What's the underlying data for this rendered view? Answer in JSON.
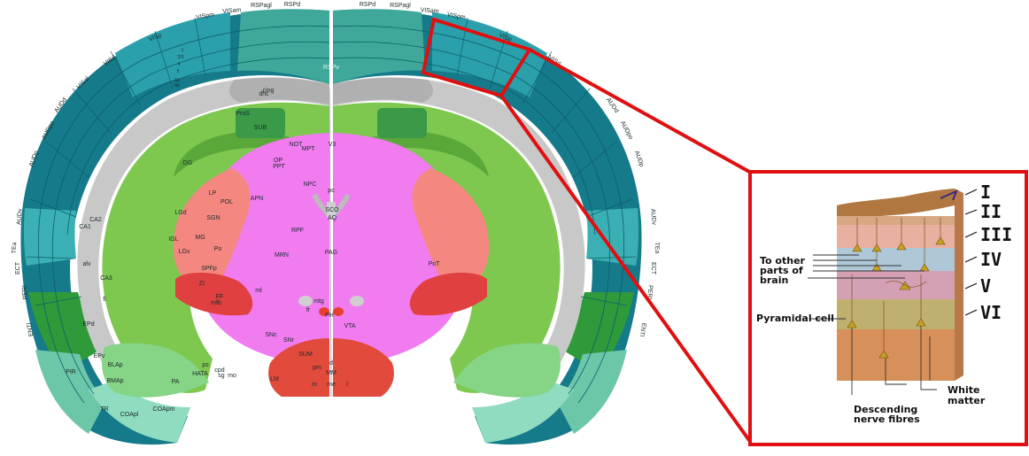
{
  "atlas": {
    "cortex_left": [
      "VISp",
      "VISpm",
      "VISam",
      "RSPagl",
      "RSPd",
      "VISrl",
      "VISal",
      "AUDd",
      "AUDpo",
      "AUDp",
      "AUDv",
      "TEa",
      "ECT",
      "PERI",
      "ENTl"
    ],
    "cortex_right": [
      "RSPd",
      "RSPagl",
      "VISam",
      "VISpm",
      "VISp",
      "VISrl",
      "AUDd",
      "AUDpo",
      "AUDp",
      "AUDv",
      "TEa",
      "ECT",
      "PERI",
      "ENTl"
    ],
    "rsp_center": "RSPv",
    "hippocampal": [
      "cing",
      "dhc",
      "SUB",
      "ProS",
      "DG",
      "CA1",
      "CA3",
      "CA2",
      "alv",
      "fi"
    ],
    "thalamic": [
      "LP",
      "LGd",
      "SGN",
      "POL",
      "MG",
      "Po",
      "LGv",
      "SPFp",
      "PoT",
      "IGL",
      "ZI",
      "FF"
    ],
    "midbrain": [
      "NOT",
      "OP",
      "MPT",
      "PPT",
      "NPC",
      "APN",
      "RPF",
      "MRN",
      "PAG",
      "SCO",
      "AQ",
      "V3",
      "pc",
      "mtg",
      "fr",
      "PH",
      "VTA",
      "SNc",
      "SNr",
      "mfb",
      "cpd",
      "ml"
    ],
    "hypothalamic": [
      "SUM",
      "MM",
      "LM",
      "d",
      "pm",
      "me",
      "m",
      "l"
    ],
    "amygdalar": [
      "BLAp",
      "BMAp",
      "EPv",
      "EPd",
      "PA",
      "PIR",
      "TR",
      "COApl",
      "COApm",
      "HATA",
      "ps",
      "sg",
      "mo"
    ],
    "cortical_layers": [
      "1",
      "2/3",
      "4",
      "5",
      "6a",
      "6b"
    ]
  },
  "inset": {
    "roman_layers": [
      "I",
      "II",
      "III",
      "IV",
      "V",
      "VI"
    ],
    "annotation_other_parts": [
      "To other",
      "parts of",
      "brain"
    ],
    "annotation_pyramidal": "Pyramidal cell",
    "annotation_white": [
      "White",
      "matter"
    ],
    "annotation_descending": [
      "Descending",
      "nerve fibres"
    ]
  },
  "colors": {
    "highlight": "#e01010",
    "cortex_dark": "#157a8a",
    "cortex_mid": "#2aa0ac",
    "cortex_light": "#56c0c0",
    "rsp": "#3fa89a",
    "hippocampus": "#7ec850",
    "fiber": "#c8c8c8",
    "midbrain": "#f07cf0",
    "thalamus": "#f48880",
    "zona": "#e04040",
    "olfactory_green": "#3caa3c",
    "amygdala": "#86d486",
    "piriform": "#6cc6a8"
  }
}
